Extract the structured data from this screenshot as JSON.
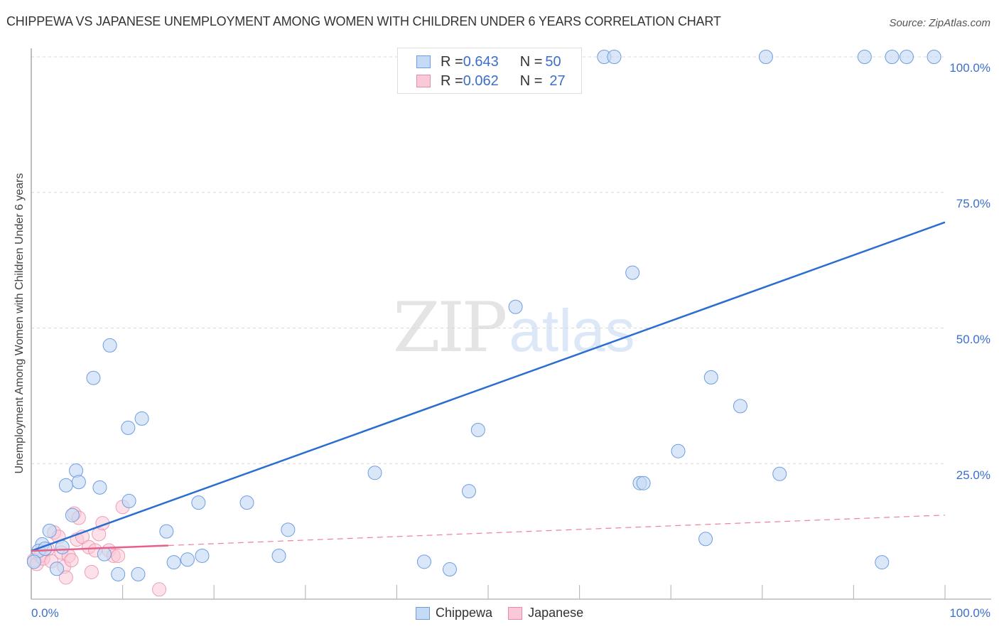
{
  "header": {
    "title": "CHIPPEWA VS JAPANESE UNEMPLOYMENT AMONG WOMEN WITH CHILDREN UNDER 6 YEARS CORRELATION CHART",
    "source": "Source: ZipAtlas.com"
  },
  "watermark": {
    "zip": "ZIP",
    "atlas": "atlas"
  },
  "legend": {
    "rows": [
      {
        "r_label": "R = ",
        "r_value": "0.643",
        "n_label": "N = ",
        "n_value": "50",
        "color": "#a9c8f0"
      },
      {
        "r_label": "R = ",
        "r_value": "0.062",
        "n_label": "N = ",
        "n_value": "27",
        "color": "#f7b8cb"
      }
    ]
  },
  "bottom_legend": {
    "series1": "Chippewa",
    "series2": "Japanese"
  },
  "axes": {
    "ylabel": "Unemployment Among Women with Children Under 6 years",
    "y_ticks": [
      "100.0%",
      "75.0%",
      "50.0%",
      "25.0%"
    ],
    "x_min_label": "0.0%",
    "x_max_label": "100.0%"
  },
  "colors": {
    "chippewa_fill": "#c5daf5",
    "chippewa_stroke": "#6f9de0",
    "chippewa_line": "#2a6fd0",
    "japanese_fill": "#f9c9d7",
    "japanese_stroke": "#ea8aa8",
    "japanese_line": "#e8608a",
    "tick_text": "#3b6fc9"
  },
  "chart_data": {
    "type": "scatter",
    "title": "CHIPPEWA VS JAPANESE UNEMPLOYMENT AMONG WOMEN WITH CHILDREN UNDER 6 YEARS CORRELATION CHART",
    "xlabel": "",
    "ylabel": "Unemployment Among Women with Children Under 6 years",
    "xlim": [
      0,
      100
    ],
    "ylim": [
      0,
      100
    ],
    "x_unit": "%",
    "y_unit": "%",
    "grid": "horizontal dashed at 25, 50, 75, 100",
    "legend_position": "top-center (stats) and bottom-center (series)",
    "series": [
      {
        "name": "Chippewa",
        "R": 0.643,
        "N": 50,
        "trendline": {
          "x": [
            0,
            100
          ],
          "y": [
            8.9,
            69.5
          ]
        },
        "points": [
          [
            62.7,
            100
          ],
          [
            63.8,
            100
          ],
          [
            80.4,
            100
          ],
          [
            91.2,
            100
          ],
          [
            94.2,
            100
          ],
          [
            95.8,
            100
          ],
          [
            98.8,
            100
          ],
          [
            65.8,
            60.2
          ],
          [
            53.0,
            53.9
          ],
          [
            8.6,
            46.8
          ],
          [
            6.8,
            40.8
          ],
          [
            74.4,
            40.9
          ],
          [
            77.6,
            35.6
          ],
          [
            12.1,
            33.3
          ],
          [
            10.6,
            31.6
          ],
          [
            48.9,
            31.2
          ],
          [
            70.8,
            27.3
          ],
          [
            4.9,
            23.7
          ],
          [
            37.6,
            23.3
          ],
          [
            81.9,
            23.1
          ],
          [
            5.2,
            21.6
          ],
          [
            3.8,
            21.0
          ],
          [
            7.5,
            20.6
          ],
          [
            47.9,
            19.9
          ],
          [
            66.6,
            21.4
          ],
          [
            67.0,
            21.4
          ],
          [
            10.7,
            18.1
          ],
          [
            18.3,
            17.8
          ],
          [
            23.6,
            17.8
          ],
          [
            2.0,
            12.6
          ],
          [
            14.8,
            12.5
          ],
          [
            28.1,
            12.8
          ],
          [
            73.8,
            11.1
          ],
          [
            1.2,
            10.1
          ],
          [
            3.4,
            9.6
          ],
          [
            8.0,
            8.3
          ],
          [
            18.7,
            8.0
          ],
          [
            17.1,
            7.3
          ],
          [
            15.6,
            6.8
          ],
          [
            27.1,
            8.0
          ],
          [
            43.0,
            6.9
          ],
          [
            45.8,
            5.5
          ],
          [
            93.1,
            6.8
          ],
          [
            9.5,
            4.6
          ],
          [
            11.7,
            4.6
          ],
          [
            2.8,
            5.6
          ],
          [
            0.8,
            8.9
          ],
          [
            0.3,
            6.9
          ],
          [
            4.5,
            15.5
          ],
          [
            1.5,
            9.3
          ]
        ]
      },
      {
        "name": "Japanese",
        "R": 0.062,
        "N": 27,
        "trendline": {
          "x": [
            0,
            15
          ],
          "y": [
            8.9,
            9.9
          ],
          "extended_dashed_to": [
            100,
            15.5
          ]
        },
        "points": [
          [
            0.3,
            7.2
          ],
          [
            0.6,
            6.5
          ],
          [
            1.0,
            8.0
          ],
          [
            1.3,
            7.5
          ],
          [
            1.8,
            9.2
          ],
          [
            2.2,
            7.0
          ],
          [
            2.5,
            12.3
          ],
          [
            3.0,
            11.5
          ],
          [
            3.3,
            8.6
          ],
          [
            3.6,
            6.0
          ],
          [
            3.8,
            4.0
          ],
          [
            4.1,
            8.0
          ],
          [
            4.4,
            7.2
          ],
          [
            4.7,
            15.8
          ],
          [
            5.0,
            11.0
          ],
          [
            5.2,
            15.0
          ],
          [
            5.6,
            11.5
          ],
          [
            6.3,
            9.6
          ],
          [
            6.6,
            5.0
          ],
          [
            7.0,
            9.0
          ],
          [
            7.4,
            12.0
          ],
          [
            7.8,
            14.0
          ],
          [
            8.5,
            9.0
          ],
          [
            9.0,
            8.0
          ],
          [
            9.5,
            8.0
          ],
          [
            10.0,
            17.0
          ],
          [
            14.0,
            1.8
          ]
        ]
      }
    ]
  }
}
